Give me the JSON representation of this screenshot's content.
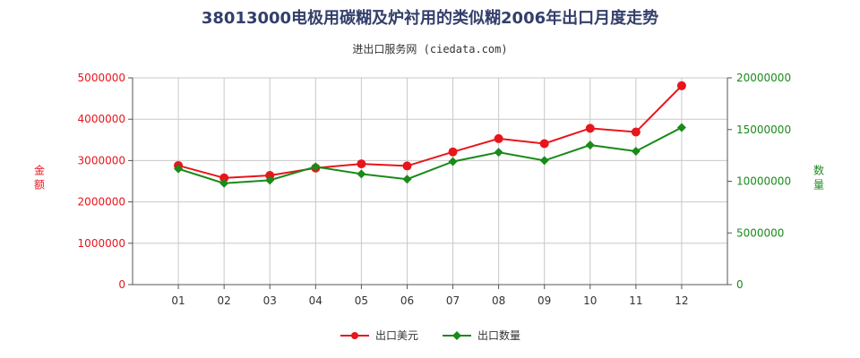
{
  "title": "38013000电极用碳糊及炉衬用的类似糊2006年出口月度走势",
  "subtitle": "进出口服务网 (ciedata.com)",
  "colors": {
    "left_series": "#e8151b",
    "right_series": "#1a8a1a",
    "grid": "#c8c8c8",
    "axis": "#555555",
    "title": "#333f6b"
  },
  "chart_data": {
    "type": "line",
    "title": "38013000电极用碳糊及炉衬用的类似糊2006年出口月度走势",
    "categories": [
      "01",
      "02",
      "03",
      "04",
      "05",
      "06",
      "07",
      "08",
      "09",
      "10",
      "11",
      "12"
    ],
    "y_left": {
      "label": "金额",
      "range": [
        0,
        5000000
      ],
      "ticks": [
        "0",
        "1000000",
        "2000000",
        "3000000",
        "4000000",
        "5000000"
      ]
    },
    "y_right": {
      "label": "数量",
      "range": [
        0,
        20000000
      ],
      "ticks": [
        "0",
        "5000000",
        "10000000",
        "15000000",
        "20000000"
      ]
    },
    "series": [
      {
        "name": "出口美元",
        "axis": "left",
        "values": [
          2880000,
          2580000,
          2640000,
          2820000,
          2920000,
          2870000,
          3210000,
          3530000,
          3410000,
          3780000,
          3690000,
          4810000
        ]
      },
      {
        "name": "出口数量",
        "axis": "right",
        "values": [
          11200000,
          9800000,
          10100000,
          11400000,
          10700000,
          10200000,
          11900000,
          12800000,
          12000000,
          13500000,
          12900000,
          15200000
        ]
      }
    ],
    "grid": true,
    "legend": "bottom-center"
  }
}
